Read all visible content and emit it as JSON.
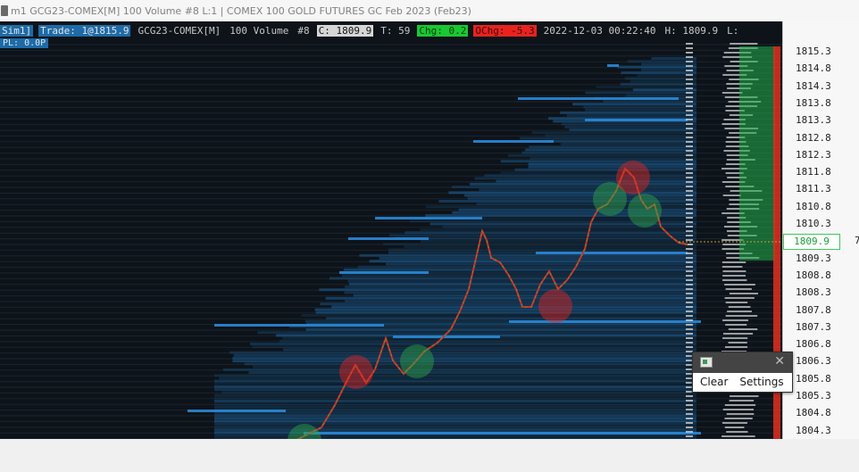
{
  "window": {
    "title": "m1 GCG23-COMEX[M]  100 Volume  #8 L:1 | COMEX 100 GOLD FUTURES GC Feb 2023 (Feb23)"
  },
  "infobar": {
    "mode": "Sim1]",
    "trade": "Trade: 1@1815.9",
    "symbol": "GCG23-COMEX[M]",
    "bars": "100 Volume",
    "num": "#8",
    "close": "C: 1809.9",
    "ticks": "T: 59",
    "chg": "Chg: 0.2",
    "ochg": "OChg: -5.3",
    "datetime": "2022-12-03  00:22:40",
    "high": "H: 1809.9",
    "low": "L: "
  },
  "pl": "PL: 0.0P",
  "price_axis": {
    "labels": [
      "1815.3",
      "1814.8",
      "1814.3",
      "1813.8",
      "1813.3",
      "1812.8",
      "1812.3",
      "1811.8",
      "1811.3",
      "1810.8",
      "1810.3",
      "1809.9",
      "1809.3",
      "1808.8",
      "1808.3",
      "1807.8",
      "1807.3",
      "1806.8",
      "1806.3",
      "1805.8",
      "1805.3",
      "1804.8",
      "1804.3"
    ],
    "current": "1809.9",
    "right_tick": "7"
  },
  "popup": {
    "clear": "Clear",
    "settings": "Settings",
    "close": "✕"
  },
  "colors": {
    "background": "#0d1319",
    "bid_ask_heat": "#1f6fb0",
    "up_candle": "#2ea84a",
    "down_candle": "#e8231e",
    "current_price_border": "#3cc85a"
  }
}
